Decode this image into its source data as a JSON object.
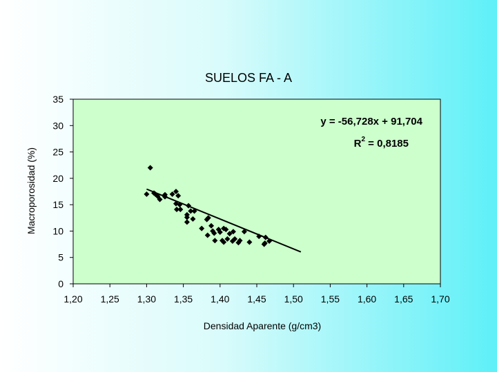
{
  "chart_data": {
    "type": "scatter",
    "title": "SUELOS FA - A",
    "xlabel": "Densidad Aparente (g/cm3)",
    "ylabel": "Macroporosidad (%)",
    "xlim": [
      1.2,
      1.7
    ],
    "ylim": [
      0,
      35
    ],
    "x_ticks": [
      1.2,
      1.25,
      1.3,
      1.35,
      1.4,
      1.45,
      1.5,
      1.55,
      1.6,
      1.65,
      1.7
    ],
    "x_tick_labels": [
      "1,20",
      "1,25",
      "1,30",
      "1,35",
      "1,40",
      "1,45",
      "1,50",
      "1,55",
      "1,60",
      "1,65",
      "1,70"
    ],
    "y_ticks": [
      0,
      5,
      10,
      15,
      20,
      25,
      30,
      35
    ],
    "y_tick_labels": [
      "0",
      "5",
      "10",
      "15",
      "20",
      "25",
      "30",
      "35"
    ],
    "grid": false,
    "plot_background": "#ccffcc",
    "marker_color": "#000000",
    "trendline": {
      "slope": -56.728,
      "intercept": 91.704,
      "x_range": [
        1.3,
        1.51
      ],
      "equation_label": "y = -56,728x + 91,704",
      "r2_label_main": "R",
      "r2_label_sup": "2",
      "r2_label_rest": " = 0,8185"
    },
    "points": [
      {
        "x": 1.3,
        "y": 17.0
      },
      {
        "x": 1.305,
        "y": 22.0
      },
      {
        "x": 1.31,
        "y": 17.2
      },
      {
        "x": 1.312,
        "y": 17.0
      },
      {
        "x": 1.315,
        "y": 16.6
      },
      {
        "x": 1.318,
        "y": 16.0
      },
      {
        "x": 1.325,
        "y": 16.9
      },
      {
        "x": 1.325,
        "y": 16.5
      },
      {
        "x": 1.335,
        "y": 17.0
      },
      {
        "x": 1.34,
        "y": 17.5
      },
      {
        "x": 1.343,
        "y": 16.7
      },
      {
        "x": 1.34,
        "y": 15.2
      },
      {
        "x": 1.345,
        "y": 15.0
      },
      {
        "x": 1.341,
        "y": 14.1
      },
      {
        "x": 1.346,
        "y": 14.1
      },
      {
        "x": 1.355,
        "y": 13.1
      },
      {
        "x": 1.355,
        "y": 12.6
      },
      {
        "x": 1.355,
        "y": 11.7
      },
      {
        "x": 1.357,
        "y": 14.8
      },
      {
        "x": 1.36,
        "y": 13.8
      },
      {
        "x": 1.363,
        "y": 12.3
      },
      {
        "x": 1.365,
        "y": 13.8
      },
      {
        "x": 1.375,
        "y": 10.5
      },
      {
        "x": 1.382,
        "y": 12.2
      },
      {
        "x": 1.384,
        "y": 12.5
      },
      {
        "x": 1.383,
        "y": 9.2
      },
      {
        "x": 1.388,
        "y": 11.0
      },
      {
        "x": 1.39,
        "y": 10.0
      },
      {
        "x": 1.392,
        "y": 9.6
      },
      {
        "x": 1.393,
        "y": 8.2
      },
      {
        "x": 1.398,
        "y": 10.3
      },
      {
        "x": 1.4,
        "y": 9.8
      },
      {
        "x": 1.403,
        "y": 8.2
      },
      {
        "x": 1.405,
        "y": 10.5
      },
      {
        "x": 1.405,
        "y": 7.9
      },
      {
        "x": 1.408,
        "y": 10.3
      },
      {
        "x": 1.41,
        "y": 8.5
      },
      {
        "x": 1.413,
        "y": 9.5
      },
      {
        "x": 1.417,
        "y": 8.1
      },
      {
        "x": 1.418,
        "y": 9.9
      },
      {
        "x": 1.42,
        "y": 8.5
      },
      {
        "x": 1.425,
        "y": 7.8
      },
      {
        "x": 1.427,
        "y": 8.2
      },
      {
        "x": 1.433,
        "y": 9.9
      },
      {
        "x": 1.44,
        "y": 7.9
      },
      {
        "x": 1.453,
        "y": 9.0
      },
      {
        "x": 1.46,
        "y": 7.5
      },
      {
        "x": 1.461,
        "y": 7.7
      },
      {
        "x": 1.462,
        "y": 8.8
      },
      {
        "x": 1.467,
        "y": 8.1
      }
    ]
  }
}
